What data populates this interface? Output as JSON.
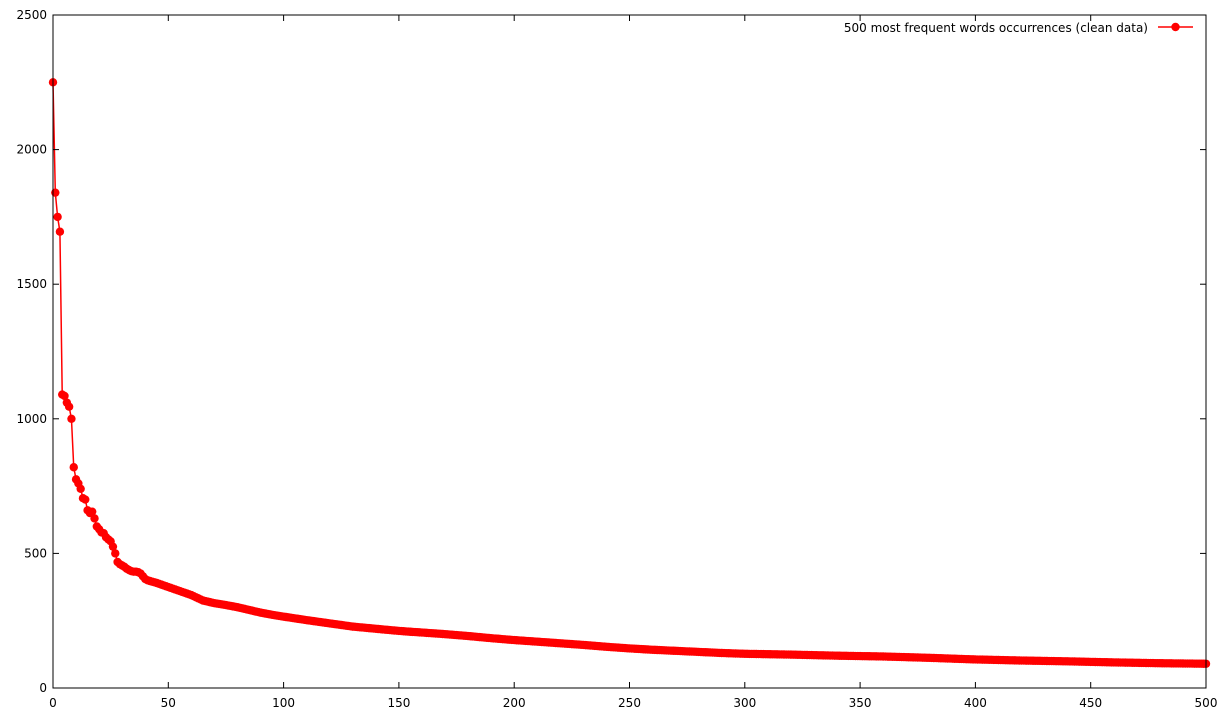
{
  "chart_data": {
    "type": "line",
    "title": "",
    "xlabel": "",
    "ylabel": "",
    "xlim": [
      0,
      500
    ],
    "ylim": [
      0,
      2500
    ],
    "x_ticks": [
      "0",
      "50",
      "100",
      "150",
      "200",
      "250",
      "300",
      "350",
      "400",
      "450",
      "500"
    ],
    "y_ticks": [
      "0",
      "500",
      "1000",
      "1500",
      "2000",
      "2500"
    ],
    "grid": false,
    "legend_position": "top-right",
    "series": [
      {
        "name": "500 most frequent words occurrences (clean data)",
        "color": "#ff0000",
        "marker": "circle",
        "head_values": [
          2250,
          1840,
          1750,
          1695,
          1090,
          1085,
          1060,
          1045,
          1000,
          820,
          775,
          760,
          740,
          705,
          700,
          660,
          650,
          655,
          630,
          600,
          590,
          578,
          575,
          560,
          552,
          545,
          525,
          500,
          468,
          460,
          455,
          450,
          443,
          438,
          434,
          432,
          432,
          430,
          425,
          415,
          405
        ],
        "tail_points": [
          [
            41,
            400
          ],
          [
            45,
            390
          ],
          [
            50,
            375
          ],
          [
            55,
            360
          ],
          [
            60,
            345
          ],
          [
            65,
            325
          ],
          [
            70,
            315
          ],
          [
            75,
            308
          ],
          [
            80,
            300
          ],
          [
            85,
            290
          ],
          [
            90,
            280
          ],
          [
            95,
            272
          ],
          [
            100,
            265
          ],
          [
            110,
            252
          ],
          [
            120,
            240
          ],
          [
            130,
            228
          ],
          [
            140,
            220
          ],
          [
            150,
            212
          ],
          [
            160,
            206
          ],
          [
            170,
            200
          ],
          [
            180,
            193
          ],
          [
            190,
            185
          ],
          [
            200,
            178
          ],
          [
            210,
            172
          ],
          [
            220,
            166
          ],
          [
            230,
            160
          ],
          [
            240,
            153
          ],
          [
            250,
            147
          ],
          [
            260,
            142
          ],
          [
            270,
            138
          ],
          [
            280,
            134
          ],
          [
            290,
            130
          ],
          [
            300,
            127
          ],
          [
            320,
            124
          ],
          [
            340,
            120
          ],
          [
            360,
            117
          ],
          [
            380,
            112
          ],
          [
            400,
            106
          ],
          [
            420,
            102
          ],
          [
            440,
            99
          ],
          [
            460,
            95
          ],
          [
            480,
            92
          ],
          [
            500,
            90
          ]
        ]
      }
    ]
  }
}
